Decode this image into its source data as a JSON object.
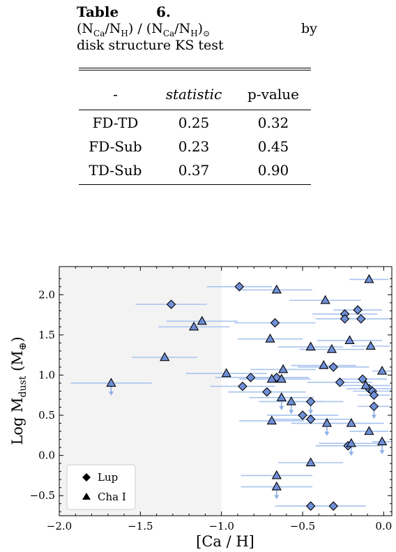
{
  "table": {
    "label": "Table",
    "number": "6.",
    "caption_expr": "(N_Ca/N_H) / (N_Ca/N_H)_⊙",
    "caption_by": "by",
    "caption_line3": "disk structure KS test",
    "headers": [
      "-",
      "statistic",
      "p-value"
    ],
    "rows": [
      {
        "pair": "FD-TD",
        "statistic": "0.25",
        "p_value": "0.32"
      },
      {
        "pair": "FD-Sub",
        "statistic": "0.23",
        "p_value": "0.45"
      },
      {
        "pair": "TD-Sub",
        "statistic": "0.37",
        "p_value": "0.90"
      }
    ]
  },
  "chart_data": {
    "type": "scatter",
    "xlabel": "[Ca / H]",
    "ylabel": "Log M_dust (M_⊕)",
    "xlim": [
      -2.0,
      0.05
    ],
    "ylim": [
      -0.75,
      2.35
    ],
    "x_ticks": [
      "−2.0",
      "−1.5",
      "−1.0",
      "−0.5",
      "0.0"
    ],
    "y_ticks": [
      "−0.5",
      "0.0",
      "0.5",
      "1.0",
      "1.5",
      "2.0"
    ],
    "shaded_region_x": [
      -2.0,
      -1.0
    ],
    "legend_position": "lower-left",
    "colors": {
      "marker_fill": "#6f8fd6",
      "errorbar": "#a8c3ee",
      "shade": "#f3f3f3",
      "upper_limit": "#8fb0e6"
    },
    "series": [
      {
        "name": "Lup",
        "marker": "diamond",
        "points": [
          {
            "x": -1.31,
            "y": 1.88,
            "xerr": 0.22
          },
          {
            "x": -0.89,
            "y": 2.1,
            "xerr": 0.2
          },
          {
            "x": -0.67,
            "y": 1.65,
            "xerr": 0.25
          },
          {
            "x": -0.82,
            "y": 0.97,
            "xerr": 0.22
          },
          {
            "x": -0.87,
            "y": 0.86,
            "xerr": 0.2
          },
          {
            "x": -0.72,
            "y": 0.79,
            "xerr": 0.24
          },
          {
            "x": -0.66,
            "y": 0.97,
            "xerr": 0.2
          },
          {
            "x": -0.45,
            "y": 0.67,
            "xerr": 0.2,
            "upper_limit": true
          },
          {
            "x": -0.5,
            "y": 0.5,
            "xerr": 0.22
          },
          {
            "x": -0.45,
            "y": 0.45,
            "xerr": 0.24
          },
          {
            "x": -0.31,
            "y": 1.1,
            "xerr": 0.22
          },
          {
            "x": -0.27,
            "y": 0.91,
            "xerr": 0.2
          },
          {
            "x": -0.24,
            "y": 1.76,
            "xerr": 0.2
          },
          {
            "x": -0.24,
            "y": 1.7,
            "xerr": 0.18
          },
          {
            "x": -0.16,
            "y": 1.81,
            "xerr": 0.15
          },
          {
            "x": -0.14,
            "y": 1.7,
            "xerr": 0.18
          },
          {
            "x": -0.13,
            "y": 0.95,
            "xerr": 0.15
          },
          {
            "x": -0.09,
            "y": 0.83,
            "xerr": 0.14
          },
          {
            "x": -0.07,
            "y": 0.8,
            "xerr": 0.12
          },
          {
            "x": -0.06,
            "y": 0.75,
            "xerr": 0.1
          },
          {
            "x": -0.06,
            "y": 0.61,
            "xerr": 0.1,
            "upper_limit": true
          },
          {
            "x": -0.22,
            "y": 0.12,
            "xerr": 0.2
          },
          {
            "x": -0.45,
            "y": -0.63,
            "xerr": 0.22
          },
          {
            "x": -0.31,
            "y": -0.63,
            "xerr": 0.2
          }
        ]
      },
      {
        "name": "Cha I",
        "marker": "triangle",
        "points": [
          {
            "x": -1.68,
            "y": 0.9,
            "xerr": 0.25,
            "upper_limit": true
          },
          {
            "x": -1.35,
            "y": 1.22,
            "xerr": 0.2
          },
          {
            "x": -1.17,
            "y": 1.6,
            "xerr": 0.22
          },
          {
            "x": -1.12,
            "y": 1.67,
            "xerr": 0.22
          },
          {
            "x": -0.97,
            "y": 1.02,
            "xerr": 0.25
          },
          {
            "x": -0.66,
            "y": 2.06,
            "xerr": 0.22
          },
          {
            "x": -0.7,
            "y": 1.45,
            "xerr": 0.2
          },
          {
            "x": -0.69,
            "y": 0.95,
            "xerr": 0.2
          },
          {
            "x": -0.62,
            "y": 1.07,
            "xerr": 0.2
          },
          {
            "x": -0.63,
            "y": 0.95,
            "xerr": 0.18
          },
          {
            "x": -0.63,
            "y": 0.72,
            "xerr": 0.2,
            "upper_limit": true
          },
          {
            "x": -0.57,
            "y": 0.67,
            "xerr": 0.2,
            "upper_limit": true
          },
          {
            "x": -0.69,
            "y": 0.43,
            "xerr": 0.2
          },
          {
            "x": -0.45,
            "y": 1.35,
            "xerr": 0.2
          },
          {
            "x": -0.36,
            "y": 1.93,
            "xerr": 0.22
          },
          {
            "x": -0.32,
            "y": 1.32,
            "xerr": 0.2
          },
          {
            "x": -0.37,
            "y": 1.12,
            "xerr": 0.2
          },
          {
            "x": -0.35,
            "y": 0.4,
            "xerr": 0.22,
            "upper_limit": true
          },
          {
            "x": -0.21,
            "y": 1.43,
            "xerr": 0.2
          },
          {
            "x": -0.2,
            "y": 0.4,
            "xerr": 0.2
          },
          {
            "x": -0.2,
            "y": 0.15,
            "xerr": 0.2,
            "upper_limit": true
          },
          {
            "x": -0.11,
            "y": 0.87,
            "xerr": 0.15
          },
          {
            "x": -0.09,
            "y": 2.19,
            "xerr": 0.12
          },
          {
            "x": -0.08,
            "y": 1.36,
            "xerr": 0.12
          },
          {
            "x": -0.09,
            "y": 0.3,
            "xerr": 0.12
          },
          {
            "x": -0.01,
            "y": 1.05,
            "xerr": 0.06
          },
          {
            "x": -0.01,
            "y": 0.17,
            "xerr": 0.06,
            "upper_limit": true
          },
          {
            "x": -0.45,
            "y": -0.09,
            "xerr": 0.2
          },
          {
            "x": -0.66,
            "y": -0.25,
            "xerr": 0.22
          },
          {
            "x": -0.66,
            "y": -0.39,
            "xerr": 0.22,
            "upper_limit": true
          }
        ]
      }
    ]
  }
}
